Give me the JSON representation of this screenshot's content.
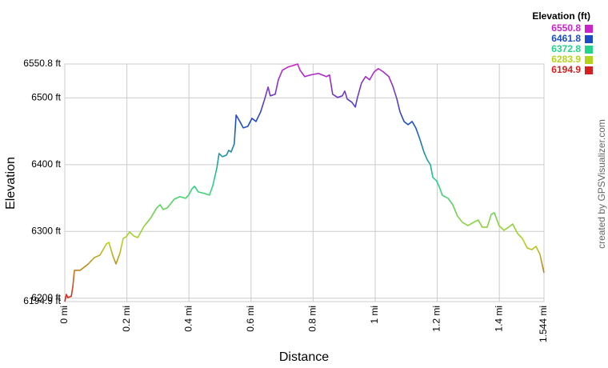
{
  "chart_data": {
    "type": "line",
    "legend_title": "Elevation (ft)",
    "xlabel": "Distance",
    "ylabel": "Elevation",
    "watermark": "created by GPSVisualizer.com",
    "color_scale": [
      {
        "value": 6550.8,
        "color": "#cc22cc"
      },
      {
        "value": 6461.8,
        "color": "#1a4cc8"
      },
      {
        "value": 6372.8,
        "color": "#22d488"
      },
      {
        "value": 6283.9,
        "color": "#b4d41c"
      },
      {
        "value": 6194.9,
        "color": "#d42020"
      }
    ],
    "x": [
      0,
      0.005,
      0.01,
      0.021,
      0.026,
      0.031,
      0.049,
      0.075,
      0.095,
      0.113,
      0.134,
      0.142,
      0.155,
      0.165,
      0.178,
      0.188,
      0.198,
      0.209,
      0.222,
      0.235,
      0.255,
      0.276,
      0.296,
      0.307,
      0.317,
      0.33,
      0.353,
      0.371,
      0.389,
      0.399,
      0.41,
      0.418,
      0.43,
      0.451,
      0.466,
      0.477,
      0.49,
      0.497,
      0.508,
      0.521,
      0.528,
      0.536,
      0.546,
      0.552,
      0.564,
      0.575,
      0.59,
      0.603,
      0.616,
      0.631,
      0.644,
      0.655,
      0.662,
      0.678,
      0.688,
      0.701,
      0.719,
      0.737,
      0.75,
      0.758,
      0.773,
      0.791,
      0.817,
      0.843,
      0.853,
      0.863,
      0.879,
      0.894,
      0.902,
      0.91,
      0.925,
      0.936,
      0.943,
      0.956,
      0.969,
      0.982,
      0.997,
      1.01,
      1.026,
      1.044,
      1.057,
      1.07,
      1.08,
      1.093,
      1.106,
      1.119,
      1.131,
      1.144,
      1.157,
      1.168,
      1.178,
      1.186,
      1.198,
      1.209,
      1.216,
      1.235,
      1.25,
      1.265,
      1.281,
      1.299,
      1.317,
      1.332,
      1.345,
      1.361,
      1.374,
      1.384,
      1.399,
      1.415,
      1.43,
      1.443,
      1.459,
      1.474,
      1.49,
      1.505,
      1.518,
      1.531,
      1.544
    ],
    "values": [
      6194.9,
      6205.7,
      6200.9,
      6203,
      6217.7,
      6241.7,
      6241.7,
      6251,
      6260.8,
      6264.4,
      6281.2,
      6283.6,
      6263.2,
      6251.3,
      6268,
      6289.6,
      6292,
      6299.2,
      6293.2,
      6290.8,
      6307.6,
      6319.6,
      6335.2,
      6340,
      6332.8,
      6335.2,
      6348.4,
      6352,
      6349.6,
      6354.4,
      6364,
      6367.6,
      6359.2,
      6356.8,
      6354.4,
      6368.8,
      6395.2,
      6416.7,
      6411.9,
      6414.3,
      6421.5,
      6419.1,
      6431.1,
      6474.3,
      6464.7,
      6455.1,
      6457.5,
      6469.5,
      6464.7,
      6479.1,
      6498.3,
      6516.3,
      6503.1,
      6505.5,
      6527.1,
      6541.5,
      6546.3,
      6548.7,
      6550.8,
      6541.5,
      6531.9,
      6534.3,
      6536.7,
      6531.9,
      6534.3,
      6505.5,
      6500.7,
      6503.1,
      6510.3,
      6498.3,
      6493.5,
      6486.3,
      6500.7,
      6522.3,
      6531.9,
      6527.1,
      6539.1,
      6543.9,
      6539.1,
      6531.9,
      6517.5,
      6498.3,
      6479.1,
      6464.7,
      6459.9,
      6464.7,
      6455.1,
      6438.3,
      6419.1,
      6407.1,
      6399.9,
      6380.7,
      6375.9,
      6363.9,
      6354.4,
      6349.6,
      6340,
      6323.2,
      6313.6,
      6308.8,
      6313.6,
      6317.2,
      6306.4,
      6306.4,
      6325.6,
      6328,
      6308.8,
      6301.6,
      6306.4,
      6311.2,
      6296.8,
      6289.6,
      6275.2,
      6272.8,
      6277.6,
      6265.6,
      6238.1
    ],
    "xlim": [
      0,
      1.544
    ],
    "ylim": [
      6194.9,
      6550.8
    ],
    "xticks": [
      {
        "value": 0,
        "label": "0 mi"
      },
      {
        "value": 0.2,
        "label": "0.2 mi"
      },
      {
        "value": 0.4,
        "label": "0.4 mi"
      },
      {
        "value": 0.6,
        "label": "0.6 mi"
      },
      {
        "value": 0.8,
        "label": "0.8 mi"
      },
      {
        "value": 1,
        "label": "1 mi"
      },
      {
        "value": 1.2,
        "label": "1.2 mi"
      },
      {
        "value": 1.4,
        "label": "1.4 mi"
      },
      {
        "value": 1.544,
        "label": "1.544 mi"
      }
    ],
    "yticks": [
      {
        "value": 6194.9,
        "label": "6194.9 ft"
      },
      {
        "value": 6200,
        "label": "6200 ft"
      },
      {
        "value": 6300,
        "label": "6300 ft"
      },
      {
        "value": 6400,
        "label": "6400 ft"
      },
      {
        "value": 6500,
        "label": "6500 ft"
      },
      {
        "value": 6550.8,
        "label": "6550.8 ft"
      }
    ],
    "grid": true
  }
}
